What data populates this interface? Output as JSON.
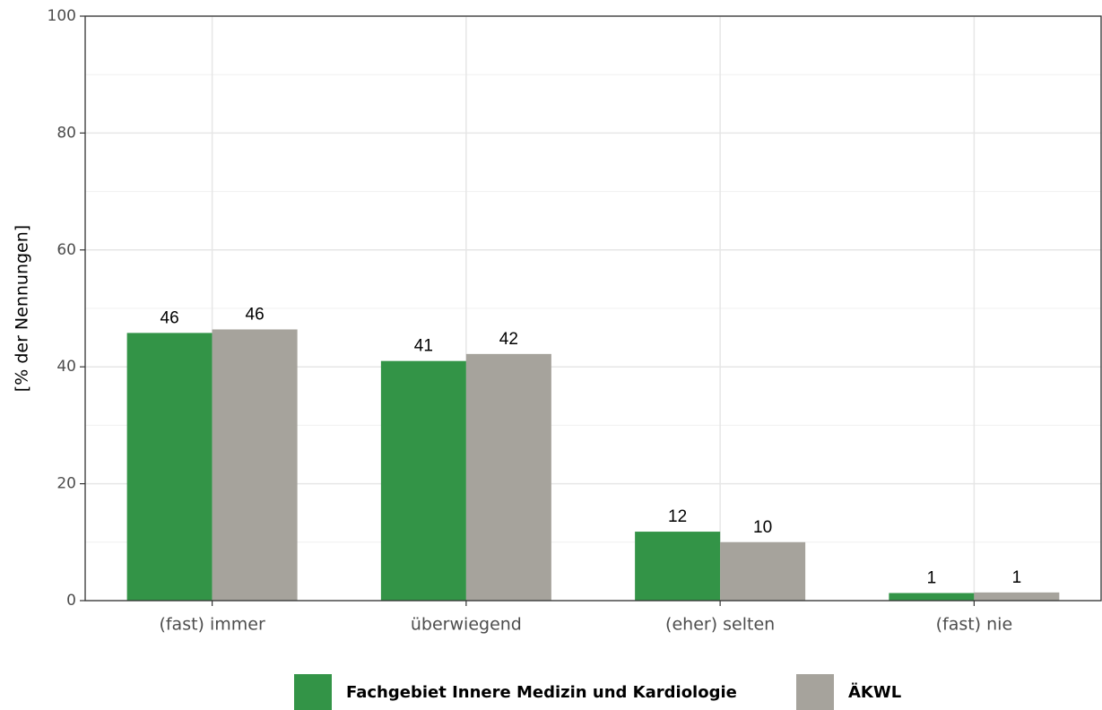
{
  "chart_data": {
    "type": "bar",
    "y_label": "[% der Nennungen]",
    "categories": [
      "(fast) immer",
      "überwiegend",
      "(eher) selten",
      "(fast) nie"
    ],
    "series": [
      {
        "name": "Fachgebiet Innere Medizin und Kardiologie",
        "color": "#339447",
        "values": [
          45.8,
          41.0,
          11.8,
          1.3
        ],
        "value_labels": [
          "46",
          "41",
          "12",
          "1"
        ]
      },
      {
        "name": "ÄKWL",
        "color": "#a6a39c",
        "values": [
          46.4,
          42.2,
          10.0,
          1.4
        ],
        "value_labels": [
          "46",
          "42",
          "10",
          "1"
        ]
      }
    ],
    "ylim": [
      0,
      100
    ],
    "yticks": [
      0,
      20,
      40,
      60,
      80,
      100
    ],
    "grid": true,
    "legend": "bottom"
  }
}
